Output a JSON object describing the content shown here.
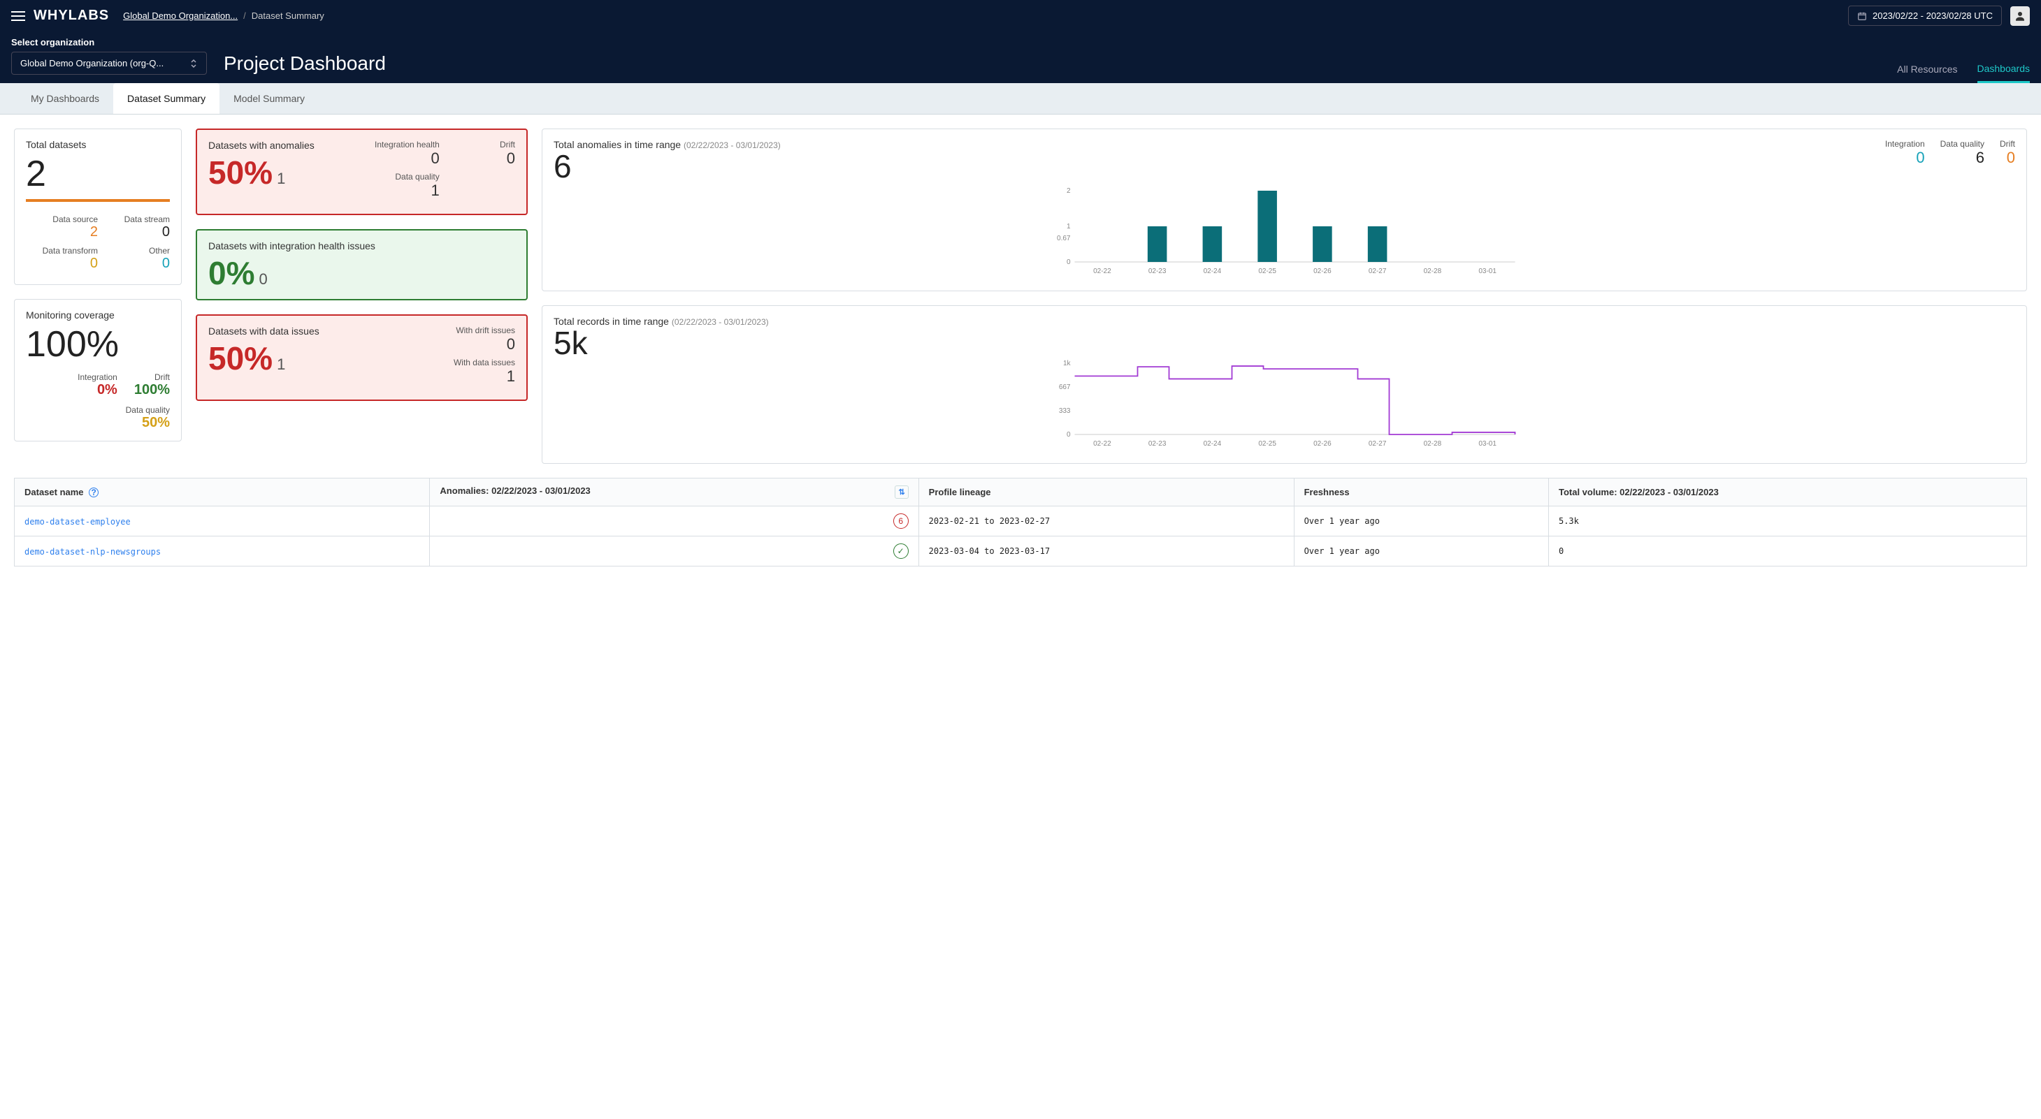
{
  "header": {
    "logo": "WHYLABS",
    "breadcrumb_org": "Global Demo Organization...",
    "breadcrumb_current": "Dataset Summary",
    "date_range": "2023/02/22  -  2023/02/28  UTC",
    "org_label": "Select organization",
    "org_selected": "Global Demo Organization (org-Q...",
    "page_title": "Project Dashboard",
    "nav_all_resources": "All Resources",
    "nav_dashboards": "Dashboards"
  },
  "tabs": {
    "my_dashboards": "My Dashboards",
    "dataset_summary": "Dataset Summary",
    "model_summary": "Model Summary"
  },
  "total_datasets": {
    "title": "Total datasets",
    "value": "2",
    "data_source_lbl": "Data source",
    "data_source_val": "2",
    "data_stream_lbl": "Data stream",
    "data_stream_val": "0",
    "data_transform_lbl": "Data transform",
    "data_transform_val": "0",
    "other_lbl": "Other",
    "other_val": "0"
  },
  "monitoring": {
    "title": "Monitoring coverage",
    "value": "100%",
    "integration_lbl": "Integration",
    "integration_val": "0%",
    "drift_lbl": "Drift",
    "drift_val": "100%",
    "data_quality_lbl": "Data quality",
    "data_quality_val": "50%"
  },
  "anomalies_card": {
    "title": "Datasets with anomalies",
    "pct": "50%",
    "count": "1",
    "ih_lbl": "Integration health",
    "ih_val": "0",
    "drift_lbl": "Drift",
    "drift_val": "0",
    "dq_lbl": "Data quality",
    "dq_val": "1"
  },
  "integration_card": {
    "title": "Datasets with integration health issues",
    "pct": "0%",
    "count": "0"
  },
  "data_issues_card": {
    "title": "Datasets with data issues",
    "pct": "50%",
    "count": "1",
    "drift_lbl": "With drift issues",
    "drift_val": "0",
    "data_lbl": "With data issues",
    "data_val": "1"
  },
  "anomalies_chart": {
    "title": "Total anomalies in time range",
    "range": "(02/22/2023 - 03/01/2023)",
    "big": "6",
    "legend": {
      "integration_lbl": "Integration",
      "integration_val": "0",
      "dq_lbl": "Data quality",
      "dq_val": "6",
      "drift_lbl": "Drift",
      "drift_val": "0"
    },
    "type": "bar",
    "categories": [
      "02-22",
      "02-23",
      "02-24",
      "02-25",
      "02-26",
      "02-27",
      "02-28",
      "03-01"
    ],
    "values": [
      0,
      1,
      1,
      2,
      1,
      1,
      0,
      0
    ],
    "yticks": [
      "0",
      "0.67",
      "1",
      "2"
    ],
    "ytick_pos": [
      0,
      0.335,
      0.5,
      1
    ],
    "bar_color": "#0b6e78",
    "axis_color": "#888",
    "bar_width": 0.35
  },
  "records_chart": {
    "title": "Total records in time range",
    "range": "(02/22/2023 - 03/01/2023)",
    "big": "5k",
    "type": "step-line",
    "categories": [
      "02-22",
      "02-23",
      "02-24",
      "02-25",
      "02-26",
      "02-27",
      "02-28",
      "03-01"
    ],
    "values": [
      820,
      820,
      950,
      780,
      780,
      960,
      920,
      920,
      920,
      780,
      0,
      0,
      30,
      30,
      0
    ],
    "yticks": [
      "0",
      "333",
      "667",
      "1k"
    ],
    "line_color": "#a23bd4",
    "axis_color": "#888",
    "ymax": 1000
  },
  "table": {
    "col_dataset": "Dataset name",
    "col_anomalies": "Anomalies: 02/22/2023 - 03/01/2023",
    "col_lineage": "Profile lineage",
    "col_freshness": "Freshness",
    "col_volume": "Total volume: 02/22/2023 - 03/01/2023",
    "rows": [
      {
        "name": "demo-dataset-employee",
        "anomalies": "6",
        "anomalies_state": "has",
        "lineage": "2023-02-21 to 2023-02-27",
        "freshness": "Over 1 year ago",
        "volume": "5.3k"
      },
      {
        "name": "demo-dataset-nlp-newsgroups",
        "anomalies": "✓",
        "anomalies_state": "ok",
        "lineage": "2023-03-04 to 2023-03-17",
        "freshness": "Over 1 year ago",
        "volume": "0"
      }
    ]
  },
  "colors": {
    "red": "#c62828",
    "green": "#2e7d32",
    "orange": "#e67e22",
    "teal": "#17a2b8",
    "yellow": "#d4a017",
    "purple": "#a23bd4",
    "bar_teal": "#0b6e78"
  }
}
